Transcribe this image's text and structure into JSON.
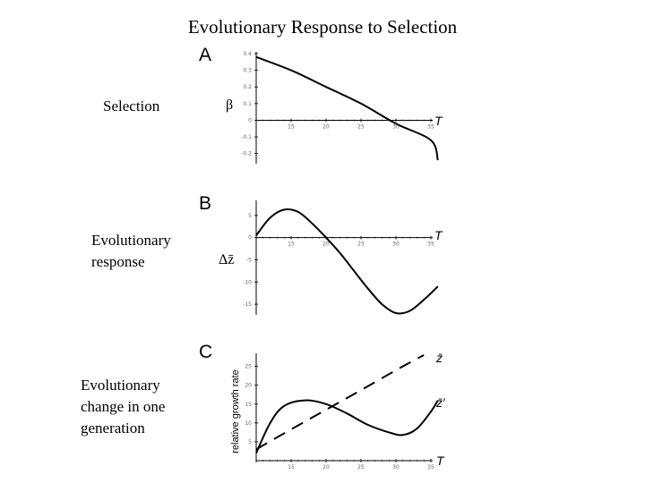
{
  "title": "Evolutionary Response to Selection",
  "row_labels": {
    "a": "Selection",
    "b_line1": "Evolutionary",
    "b_line2": "response",
    "c_line1": "Evolutionary",
    "c_line2": "change in one",
    "c_line3": "generation"
  },
  "chart_data": [
    {
      "panel": "A",
      "type": "line",
      "xlabel": "T",
      "ylabel": "β",
      "xticks": [
        "15",
        "20",
        "25",
        "30",
        "35"
      ],
      "yticks": [
        "0.4",
        "0.3",
        "0.2",
        "0.1",
        "0",
        "-0.1",
        "-0.2"
      ],
      "xlim": [
        10,
        35
      ],
      "ylim": [
        -0.25,
        0.4
      ],
      "series": [
        {
          "values": [
            [
              10,
              0.38
            ],
            [
              15,
              0.3
            ],
            [
              20,
              0.2
            ],
            [
              25,
              0.1
            ],
            [
              30,
              -0.02
            ],
            [
              35,
              -0.12
            ],
            [
              36,
              -0.24
            ]
          ]
        }
      ]
    },
    {
      "panel": "B",
      "type": "line",
      "xlabel": "T",
      "ylabel": "Δz̄",
      "xticks": [
        "15",
        "20",
        "25",
        "30",
        "35"
      ],
      "yticks": [
        "5",
        "0",
        "-5",
        "-10",
        "-15"
      ],
      "xlim": [
        10,
        35
      ],
      "ylim": [
        -17,
        8
      ],
      "series": [
        {
          "values": [
            [
              10,
              0.5
            ],
            [
              12,
              4.5
            ],
            [
              14,
              6.3
            ],
            [
              16,
              5.8
            ],
            [
              18,
              3.2
            ],
            [
              20,
              0
            ],
            [
              22,
              -3.5
            ],
            [
              24,
              -7.5
            ],
            [
              26,
              -11.5
            ],
            [
              28,
              -15
            ],
            [
              30,
              -17
            ],
            [
              32,
              -16.5
            ],
            [
              34,
              -14
            ],
            [
              36,
              -11
            ]
          ]
        }
      ]
    },
    {
      "panel": "C",
      "type": "line",
      "xlabel": "T",
      "ylabel": "relative growth rate",
      "xticks": [
        "15",
        "20",
        "25",
        "30",
        "35"
      ],
      "yticks": [
        "25",
        "20",
        "15",
        "10",
        "5"
      ],
      "xlim": [
        10,
        35
      ],
      "ylim": [
        0,
        28
      ],
      "series": [
        {
          "name": "z̄",
          "style": "dashed",
          "values": [
            [
              10,
              3
            ],
            [
              15,
              8.3
            ],
            [
              20,
              13.5
            ],
            [
              25,
              18.7
            ],
            [
              30,
              24
            ],
            [
              34,
              28
            ]
          ]
        },
        {
          "name": "z̄′",
          "style": "solid",
          "values": [
            [
              10,
              2
            ],
            [
              12,
              10
            ],
            [
              14,
              14.5
            ],
            [
              17,
              16
            ],
            [
              20,
              15
            ],
            [
              23,
              12.5
            ],
            [
              26,
              9.5
            ],
            [
              29,
              7.5
            ],
            [
              31,
              6.8
            ],
            [
              33,
              8.5
            ],
            [
              35,
              13
            ],
            [
              36,
              16
            ]
          ]
        }
      ]
    }
  ]
}
